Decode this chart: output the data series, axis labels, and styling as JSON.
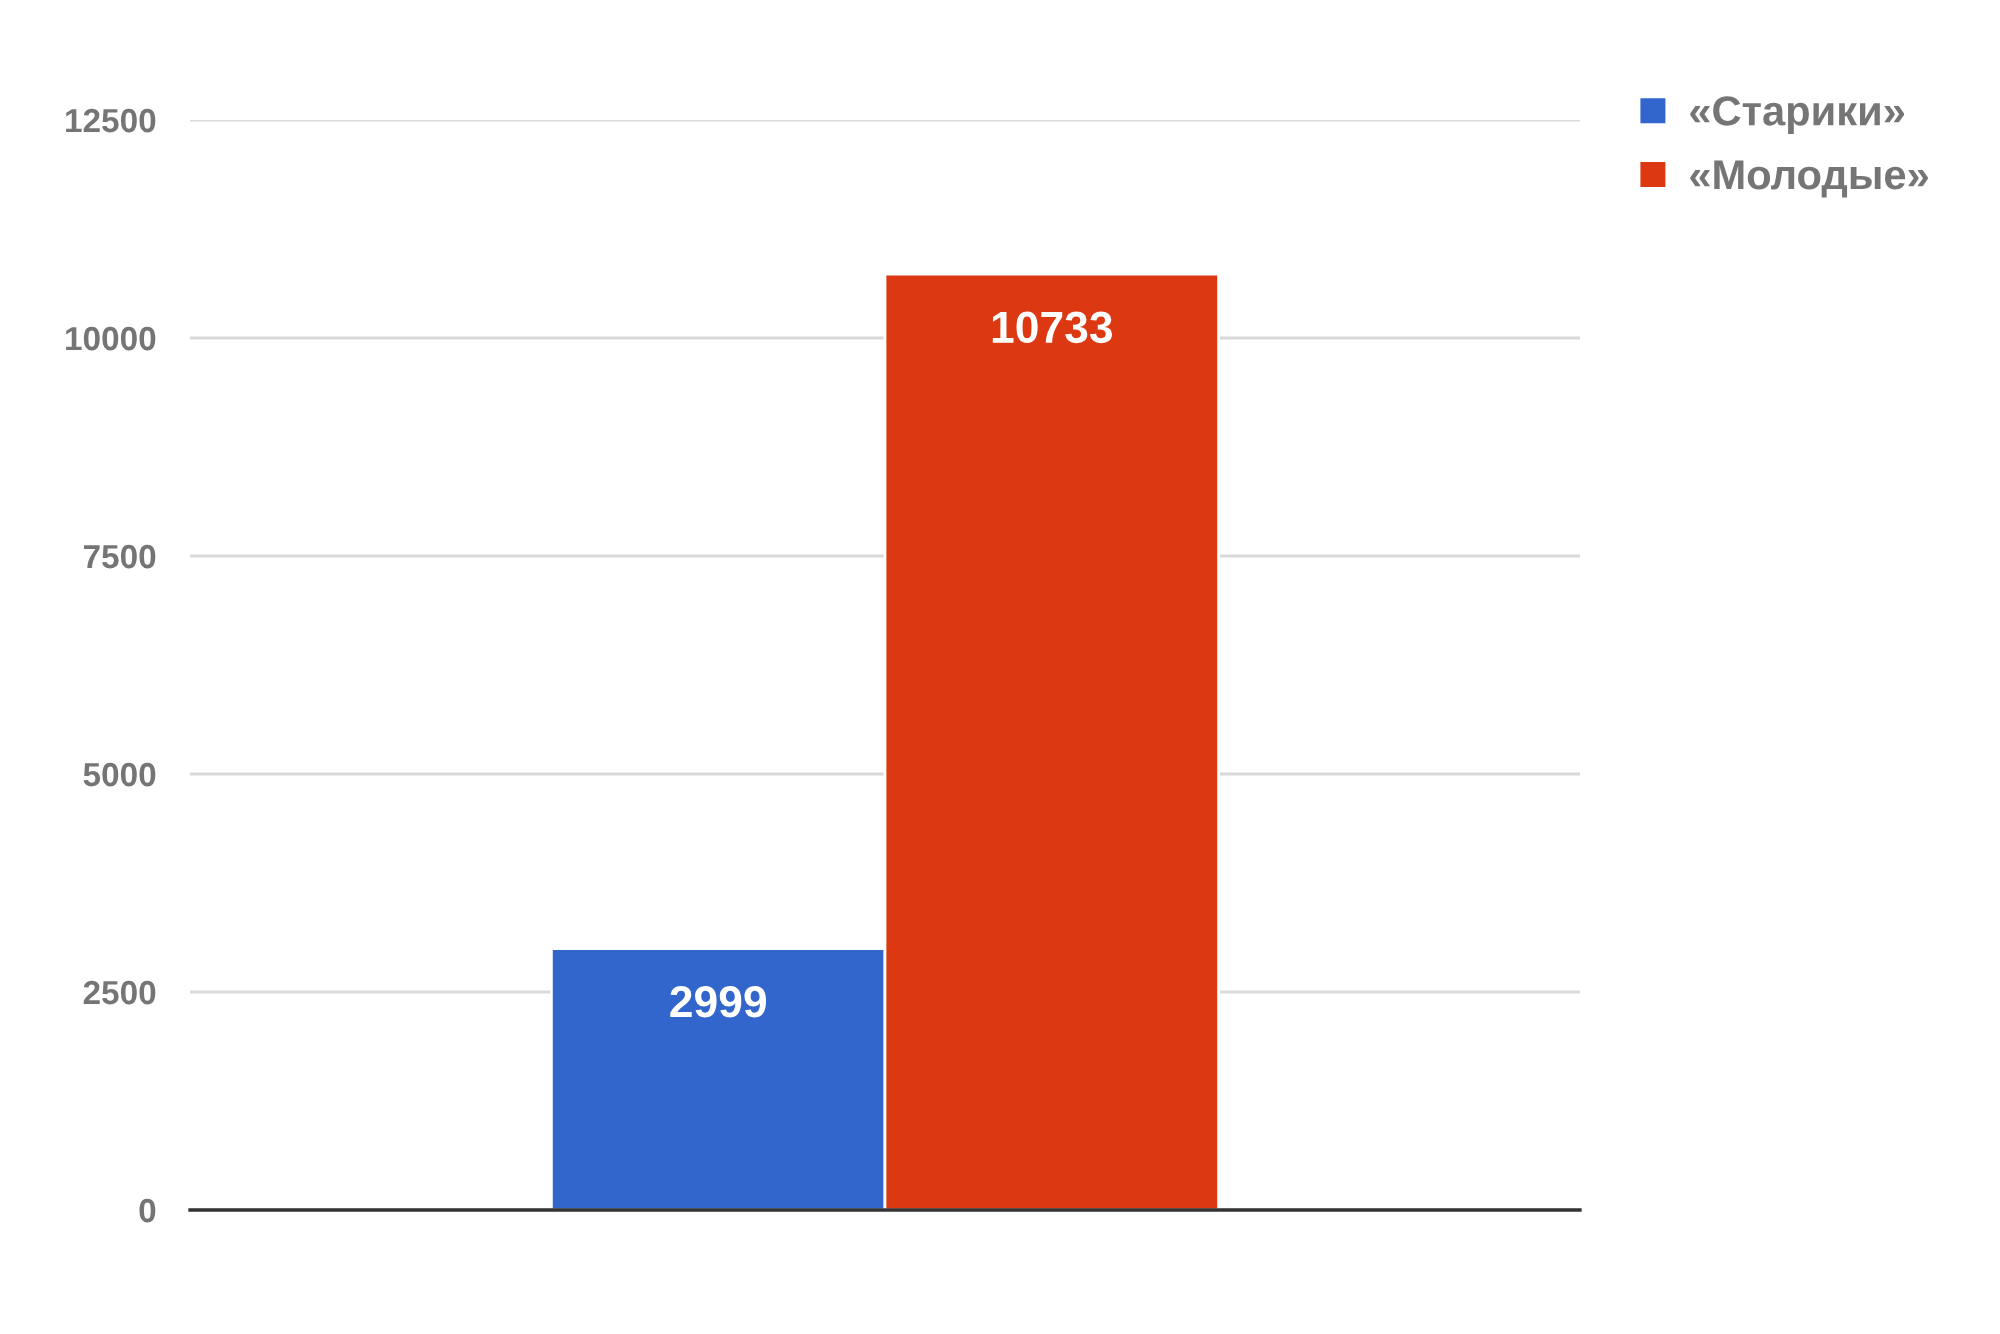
{
  "chart_data": {
    "type": "bar",
    "categories": [
      null
    ],
    "series": [
      {
        "name": "«Старики»",
        "color": "#3366cc",
        "values": [
          2999
        ]
      },
      {
        "name": "«Молодые»",
        "color": "#dc3912",
        "values": [
          10733
        ]
      }
    ],
    "ylim": [
      0,
      12500
    ],
    "yticks": [
      0,
      2500,
      5000,
      7500,
      10000,
      12500
    ],
    "grid": "y",
    "legend": "top right",
    "data_labels": true
  }
}
